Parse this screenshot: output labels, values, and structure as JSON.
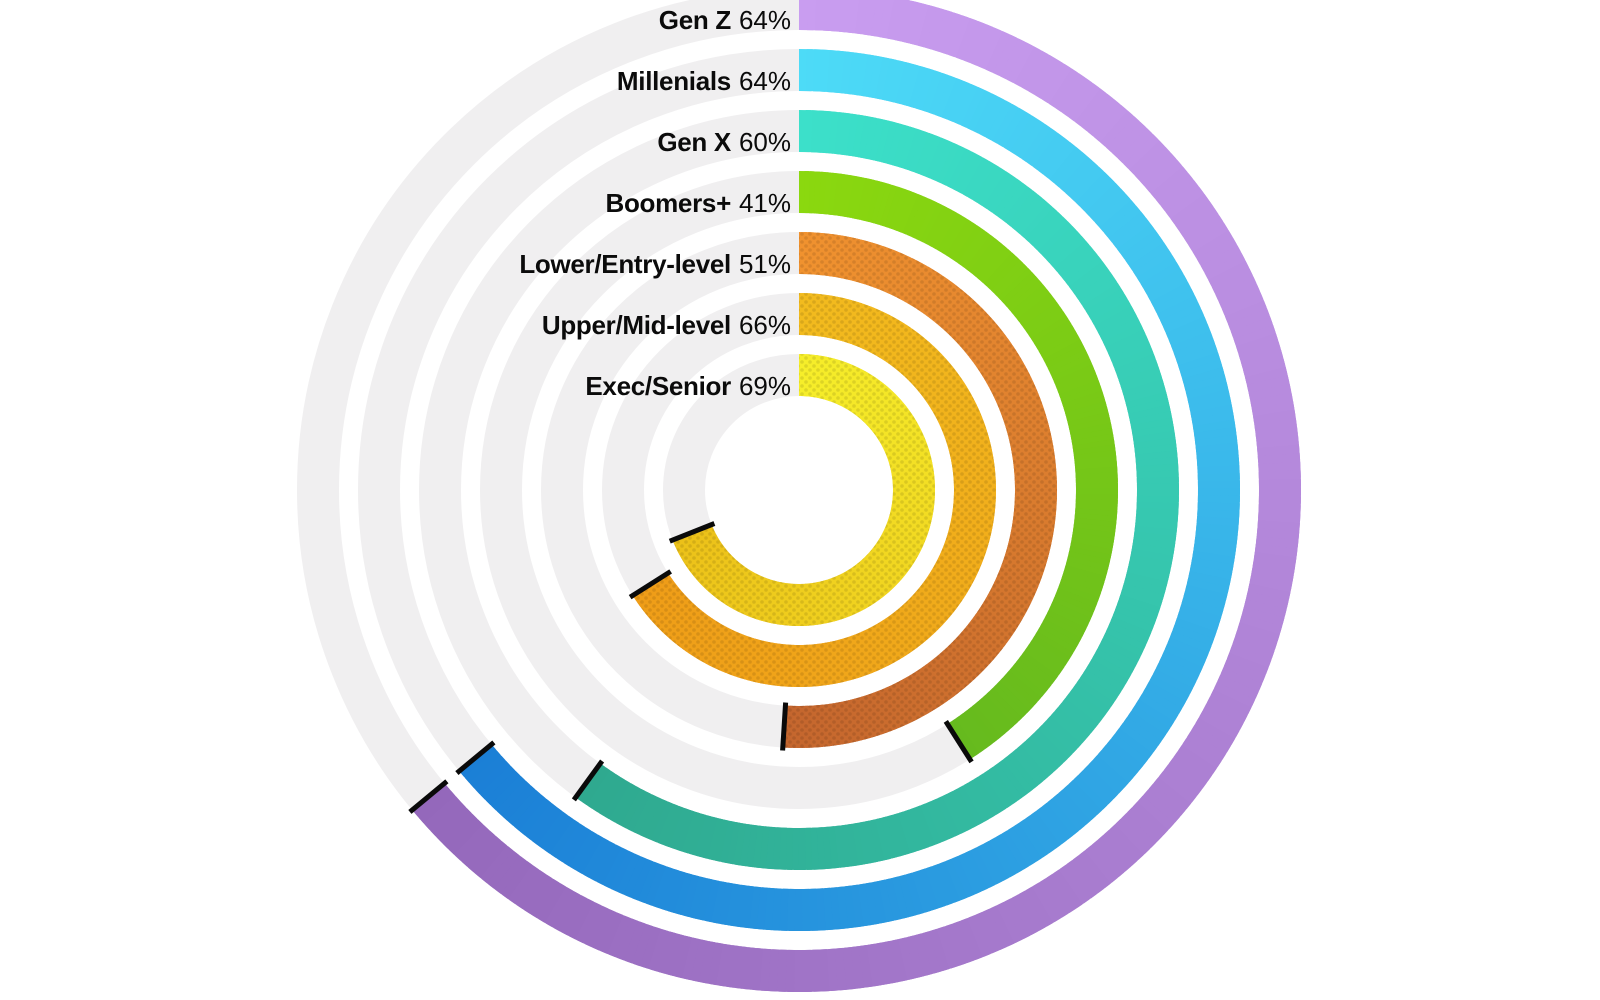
{
  "chart_data": {
    "type": "radial_progress",
    "title": "",
    "unit": "%",
    "start_angle_deg": -90,
    "direction": "clockwise",
    "legend_position": "labels-at-ring-start-top-left",
    "grid": false,
    "track_color": "#f0eff0",
    "cap_color": "#0a0a0a",
    "background": "#ffffff",
    "rings": [
      {
        "label": "Gen Z",
        "value": 64,
        "display": "64%",
        "color_start": "#c99df0",
        "color_end": "#9468bb",
        "dotted": false
      },
      {
        "label": "Millenials",
        "value": 64,
        "display": "64%",
        "color_start": "#4ddbf7",
        "color_end": "#1b7fd6",
        "dotted": false
      },
      {
        "label": "Gen X",
        "value": 60,
        "display": "60%",
        "color_start": "#3ce0ca",
        "color_end": "#2fa98f",
        "dotted": false
      },
      {
        "label": "Boomers+",
        "value": 41,
        "display": "41%",
        "color_start": "#8bd80f",
        "color_end": "#66ba1e",
        "dotted": false
      },
      {
        "label": "Lower/Entry-level",
        "value": 51,
        "display": "51%",
        "color_start": "#f0922f",
        "color_end": "#c4662e",
        "dotted": true
      },
      {
        "label": "Upper/Mid-level",
        "value": 66,
        "display": "66%",
        "color_start": "#f2bb1e",
        "color_end": "#ef9d18",
        "dotted": true
      },
      {
        "label": "Exec/Senior",
        "value": 69,
        "display": "69%",
        "color_start": "#f6ee2a",
        "color_end": "#ecc119",
        "dotted": true
      }
    ]
  }
}
